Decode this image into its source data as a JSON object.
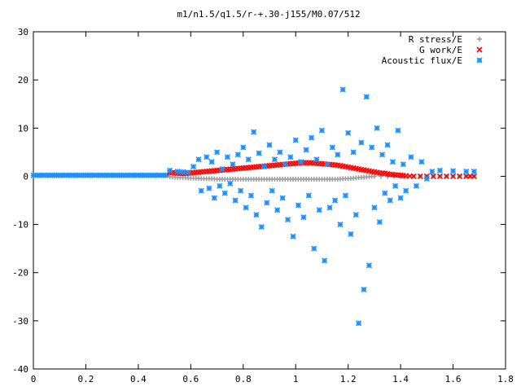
{
  "chart_data": {
    "type": "scatter",
    "title": "m1/n1.5/q1.5/r-+.30-j155/M0.07/512",
    "xlim": [
      0,
      1.8
    ],
    "ylim": [
      -40,
      30
    ],
    "xticks": [
      "0",
      "0.2",
      "0.4",
      "0.6",
      "0.8",
      "1",
      "1.2",
      "1.4",
      "1.6",
      "1.8"
    ],
    "yticks": [
      "-40",
      "-30",
      "-20",
      "-10",
      "0",
      "10",
      "20",
      "30"
    ],
    "legend_position": "top-right",
    "series": [
      {
        "name": "R stress/E",
        "marker": "+",
        "color": "#a0a0a0",
        "points": [
          [
            0.52,
            -0.1
          ],
          [
            0.54,
            -0.2
          ],
          [
            0.56,
            -0.3
          ],
          [
            0.58,
            -0.3
          ],
          [
            0.6,
            -0.4
          ],
          [
            0.62,
            -0.4
          ],
          [
            0.64,
            -0.5
          ],
          [
            0.66,
            -0.5
          ],
          [
            0.68,
            -0.5
          ],
          [
            0.7,
            -0.6
          ],
          [
            0.72,
            -0.6
          ],
          [
            0.74,
            -0.6
          ],
          [
            0.76,
            -0.6
          ],
          [
            0.78,
            -0.6
          ],
          [
            0.8,
            -0.6
          ],
          [
            0.82,
            -0.6
          ],
          [
            0.84,
            -0.6
          ],
          [
            0.86,
            -0.6
          ],
          [
            0.88,
            -0.6
          ],
          [
            0.9,
            -0.6
          ],
          [
            0.92,
            -0.6
          ],
          [
            0.94,
            -0.6
          ],
          [
            0.96,
            -0.6
          ],
          [
            0.98,
            -0.6
          ],
          [
            1.0,
            -0.6
          ],
          [
            1.02,
            -0.6
          ],
          [
            1.04,
            -0.6
          ],
          [
            1.06,
            -0.6
          ],
          [
            1.08,
            -0.6
          ],
          [
            1.1,
            -0.6
          ],
          [
            1.12,
            -0.6
          ],
          [
            1.14,
            -0.6
          ],
          [
            1.16,
            -0.6
          ],
          [
            1.18,
            -0.5
          ],
          [
            1.2,
            -0.5
          ],
          [
            1.22,
            -0.4
          ],
          [
            1.24,
            -0.3
          ],
          [
            1.26,
            -0.2
          ],
          [
            1.28,
            -0.1
          ],
          [
            1.3,
            0.0
          ],
          [
            1.35,
            0.0
          ],
          [
            1.4,
            0.0
          ],
          [
            1.45,
            0.0
          ],
          [
            1.5,
            0.0
          ],
          [
            1.55,
            0.0
          ],
          [
            1.6,
            0.0
          ],
          [
            1.65,
            0.0
          ],
          [
            1.68,
            0.0
          ]
        ]
      },
      {
        "name": "G work/E",
        "marker": "x",
        "color": "#ff0000",
        "points": [
          [
            0.52,
            0.8
          ],
          [
            0.54,
            0.7
          ],
          [
            0.56,
            0.6
          ],
          [
            0.58,
            0.6
          ],
          [
            0.6,
            0.7
          ],
          [
            0.62,
            0.8
          ],
          [
            0.64,
            0.9
          ],
          [
            0.66,
            1.0
          ],
          [
            0.68,
            1.1
          ],
          [
            0.7,
            1.2
          ],
          [
            0.72,
            1.3
          ],
          [
            0.74,
            1.4
          ],
          [
            0.76,
            1.5
          ],
          [
            0.78,
            1.6
          ],
          [
            0.8,
            1.7
          ],
          [
            0.82,
            1.8
          ],
          [
            0.84,
            1.9
          ],
          [
            0.86,
            2.0
          ],
          [
            0.88,
            2.1
          ],
          [
            0.9,
            2.2
          ],
          [
            0.92,
            2.3
          ],
          [
            0.94,
            2.4
          ],
          [
            0.96,
            2.5
          ],
          [
            0.98,
            2.6
          ],
          [
            1.0,
            2.7
          ],
          [
            1.02,
            2.8
          ],
          [
            1.04,
            2.8
          ],
          [
            1.06,
            2.8
          ],
          [
            1.08,
            2.7
          ],
          [
            1.1,
            2.6
          ],
          [
            1.12,
            2.5
          ],
          [
            1.14,
            2.4
          ],
          [
            1.16,
            2.3
          ],
          [
            1.18,
            2.1
          ],
          [
            1.2,
            1.9
          ],
          [
            1.22,
            1.7
          ],
          [
            1.24,
            1.5
          ],
          [
            1.26,
            1.3
          ],
          [
            1.28,
            1.1
          ],
          [
            1.3,
            0.9
          ],
          [
            1.32,
            0.7
          ],
          [
            1.34,
            0.6
          ],
          [
            1.36,
            0.4
          ],
          [
            1.38,
            0.3
          ],
          [
            1.4,
            0.2
          ],
          [
            1.42,
            0.1
          ],
          [
            1.45,
            0.0
          ],
          [
            1.5,
            0.0
          ],
          [
            1.55,
            0.0
          ],
          [
            1.6,
            0.0
          ],
          [
            1.65,
            0.0
          ],
          [
            1.68,
            0.0
          ]
        ]
      },
      {
        "name": "Acoustic flux/E",
        "marker": "*",
        "color": "#1e90ff",
        "points": [
          [
            0.52,
            1.2
          ],
          [
            0.55,
            1.0
          ],
          [
            0.57,
            0.9
          ],
          [
            0.59,
            0.8
          ],
          [
            0.61,
            2.0
          ],
          [
            0.63,
            3.5
          ],
          [
            0.64,
            -3.0
          ],
          [
            0.66,
            4.0
          ],
          [
            0.67,
            -2.5
          ],
          [
            0.68,
            3.0
          ],
          [
            0.69,
            -4.5
          ],
          [
            0.7,
            5.0
          ],
          [
            0.71,
            -2.0
          ],
          [
            0.72,
            1.5
          ],
          [
            0.73,
            -3.5
          ],
          [
            0.74,
            4.0
          ],
          [
            0.75,
            -1.5
          ],
          [
            0.76,
            2.5
          ],
          [
            0.77,
            -5.0
          ],
          [
            0.78,
            4.5
          ],
          [
            0.79,
            -3.0
          ],
          [
            0.8,
            6.0
          ],
          [
            0.81,
            -6.5
          ],
          [
            0.82,
            3.5
          ],
          [
            0.83,
            -4.0
          ],
          [
            0.84,
            9.2
          ],
          [
            0.85,
            -8.0
          ],
          [
            0.86,
            4.8
          ],
          [
            0.87,
            -10.5
          ],
          [
            0.88,
            2.0
          ],
          [
            0.89,
            -5.5
          ],
          [
            0.9,
            6.5
          ],
          [
            0.91,
            -3.0
          ],
          [
            0.92,
            3.5
          ],
          [
            0.93,
            -7.0
          ],
          [
            0.94,
            5.0
          ],
          [
            0.95,
            -4.5
          ],
          [
            0.96,
            2.5
          ],
          [
            0.97,
            -9.0
          ],
          [
            0.98,
            4.0
          ],
          [
            0.99,
            -12.5
          ],
          [
            1.0,
            7.5
          ],
          [
            1.01,
            -6.0
          ],
          [
            1.02,
            3.0
          ],
          [
            1.03,
            -8.5
          ],
          [
            1.04,
            5.5
          ],
          [
            1.05,
            -4.0
          ],
          [
            1.06,
            8.0
          ],
          [
            1.07,
            -15.0
          ],
          [
            1.08,
            3.5
          ],
          [
            1.09,
            -7.0
          ],
          [
            1.1,
            9.5
          ],
          [
            1.11,
            -17.5
          ],
          [
            1.12,
            2.5
          ],
          [
            1.13,
            -6.5
          ],
          [
            1.14,
            6.0
          ],
          [
            1.15,
            -5.0
          ],
          [
            1.16,
            4.5
          ],
          [
            1.17,
            -10.0
          ],
          [
            1.18,
            18.0
          ],
          [
            1.19,
            -4.0
          ],
          [
            1.2,
            9.0
          ],
          [
            1.21,
            -12.0
          ],
          [
            1.22,
            5.0
          ],
          [
            1.23,
            -8.0
          ],
          [
            1.24,
            -30.5
          ],
          [
            1.25,
            7.0
          ],
          [
            1.26,
            -23.5
          ],
          [
            1.27,
            16.5
          ],
          [
            1.28,
            -18.5
          ],
          [
            1.29,
            6.0
          ],
          [
            1.3,
            -6.5
          ],
          [
            1.31,
            10.0
          ],
          [
            1.32,
            -9.5
          ],
          [
            1.33,
            4.5
          ],
          [
            1.34,
            -3.5
          ],
          [
            1.35,
            6.5
          ],
          [
            1.36,
            -5.0
          ],
          [
            1.37,
            3.0
          ],
          [
            1.38,
            -2.0
          ],
          [
            1.39,
            9.5
          ],
          [
            1.4,
            -4.5
          ],
          [
            1.41,
            2.5
          ],
          [
            1.42,
            -3.0
          ],
          [
            1.44,
            4.0
          ],
          [
            1.46,
            -2.0
          ],
          [
            1.48,
            3.0
          ],
          [
            1.5,
            -0.5
          ],
          [
            1.52,
            1.0
          ],
          [
            1.55,
            1.2
          ],
          [
            1.6,
            1.1
          ],
          [
            1.65,
            1.0
          ],
          [
            1.68,
            1.0
          ]
        ],
        "baseline_points": {
          "x_start": 0.0,
          "x_end": 0.52,
          "y": 0.2
        }
      }
    ]
  }
}
